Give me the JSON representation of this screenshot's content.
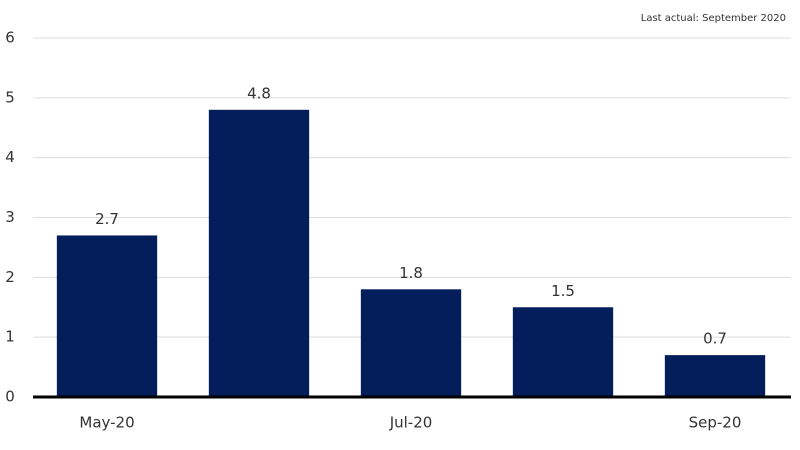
{
  "chart_data": {
    "type": "bar",
    "note": "Last actual: September 2020",
    "categories": [
      "May-20",
      null,
      "Jul-20",
      null,
      "Sep-20"
    ],
    "values": [
      2.7,
      4.8,
      1.8,
      1.5,
      0.7
    ],
    "color": "#041e5c",
    "ylim": [
      0,
      6
    ],
    "yticks": [
      0,
      1,
      2,
      3,
      4,
      5,
      6
    ],
    "grid": true
  }
}
